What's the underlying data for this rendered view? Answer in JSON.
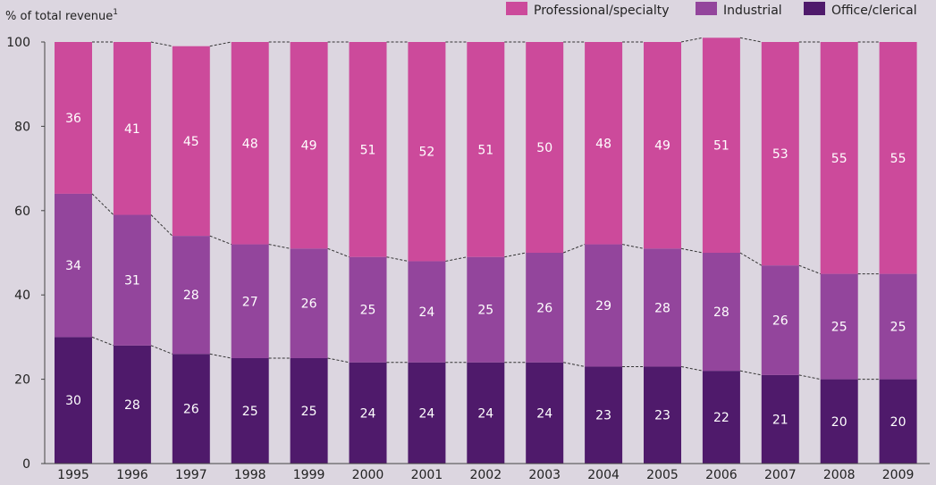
{
  "chart_data": {
    "type": "bar",
    "stacked": true,
    "ylabel": "% of total revenue",
    "ylabel_footnote": "1",
    "ylim": [
      0,
      100
    ],
    "yticks": [
      0,
      20,
      40,
      60,
      80,
      100
    ],
    "grid": false,
    "legend_position": "top-right",
    "categories": [
      "1995",
      "1996",
      "1997",
      "1998",
      "1999",
      "2000",
      "2001",
      "2002",
      "2003",
      "2004",
      "2005",
      "2006",
      "2007",
      "2008",
      "2009"
    ],
    "series": [
      {
        "name": "Office/clerical",
        "color": "#4f1a6b",
        "values": [
          30,
          28,
          26,
          25,
          25,
          24,
          24,
          24,
          24,
          23,
          23,
          22,
          21,
          20,
          20
        ]
      },
      {
        "name": "Industrial",
        "color": "#93459c",
        "values": [
          34,
          31,
          28,
          27,
          26,
          25,
          24,
          25,
          26,
          29,
          28,
          28,
          26,
          25,
          25
        ]
      },
      {
        "name": "Professional/specialty",
        "color": "#cc4a9b",
        "values": [
          36,
          41,
          45,
          48,
          49,
          51,
          52,
          51,
          50,
          48,
          49,
          51,
          53,
          55,
          55
        ]
      }
    ],
    "legend_order": [
      "Professional/specialty",
      "Industrial",
      "Office/clerical"
    ]
  }
}
